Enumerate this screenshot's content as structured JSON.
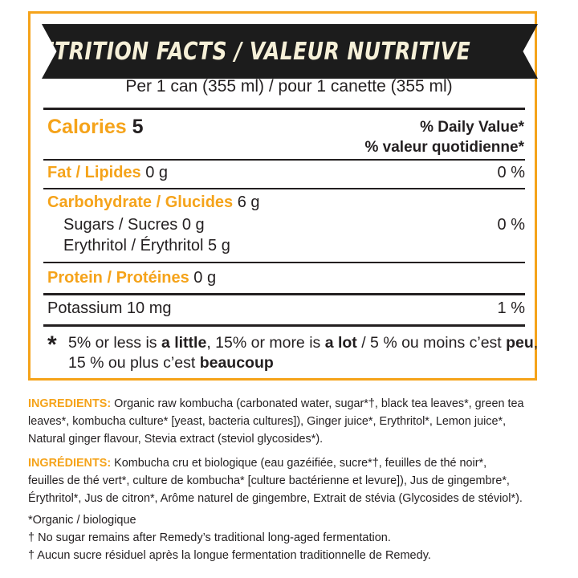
{
  "title": "NUTRITION FACTS / VALEUR NUTRITIVE",
  "serving": "Per 1 can (355 ml)  / pour 1 canette (355 ml)",
  "calories": {
    "label": "Calories",
    "value": "5"
  },
  "daily_value": {
    "en": "% Daily Value",
    "fr": "% valeur quotidienne",
    "mark": "*"
  },
  "fat": {
    "label": "Fat / Lipides",
    "amount": "0 g",
    "dv": "0 %"
  },
  "carbohydrate": {
    "label": "Carbohydrate / Glucides",
    "amount": "6 g",
    "sugars": "Sugars / Sucres 0 g",
    "sugars_dv": "0 %",
    "erythritol": "Erythritol / Érythritol 5 g"
  },
  "protein": {
    "label": "Protein / Protéines",
    "amount": "0 g"
  },
  "potassium": {
    "label": "Potassium 10 mg",
    "dv": "1 %"
  },
  "footnote": {
    "star": "*",
    "part1": "5% or less is ",
    "a_little": "a little",
    "part2": ", 15% or more  is ",
    "a_lot": "a lot",
    "part3": " / 5 % ou moins c’est ",
    "peu": "peu",
    "part4": ",",
    "part5": "15 % ou plus c’est ",
    "beaucoup": "beaucoup"
  },
  "ingredients_en": {
    "label": "INGREDIENTS:",
    "line1": " Organic raw kombucha (carbonated water, sugar*†, black tea leaves*, green tea",
    "line2": "leaves*, kombucha culture* [yeast, bacteria cultures]), Ginger juice*, Erythritol*, Lemon juice*,",
    "line3": "Natural ginger flavour, Stevia extract (steviol glycosides*)."
  },
  "ingredients_fr": {
    "label": "INGRÉDIENTS:",
    "line1": " Kombucha cru et biologique (eau gazéifiée, sucre*†, feuilles de thé noir*,",
    "line2": "feuilles de thé vert*, culture de kombucha* [culture bactérienne et levure]), Jus de gingembre*,",
    "line3": "Érythritol*, Jus de citron*, Arôme naturel de gingembre, Extrait de stévia (Glycosides de stéviol*)."
  },
  "notes": {
    "organic": "*Organic / biologique",
    "dagger_en": "† No sugar remains after Remedy’s traditional long-aged fermentation.",
    "dagger_fr": "† Aucun sucre résiduel après la longue fermentation traditionnelle de Remedy."
  },
  "colors": {
    "accent": "#f5a31a",
    "banner": "#1c1c1c",
    "banner_text": "#f6f0d8",
    "text": "#231f20"
  }
}
